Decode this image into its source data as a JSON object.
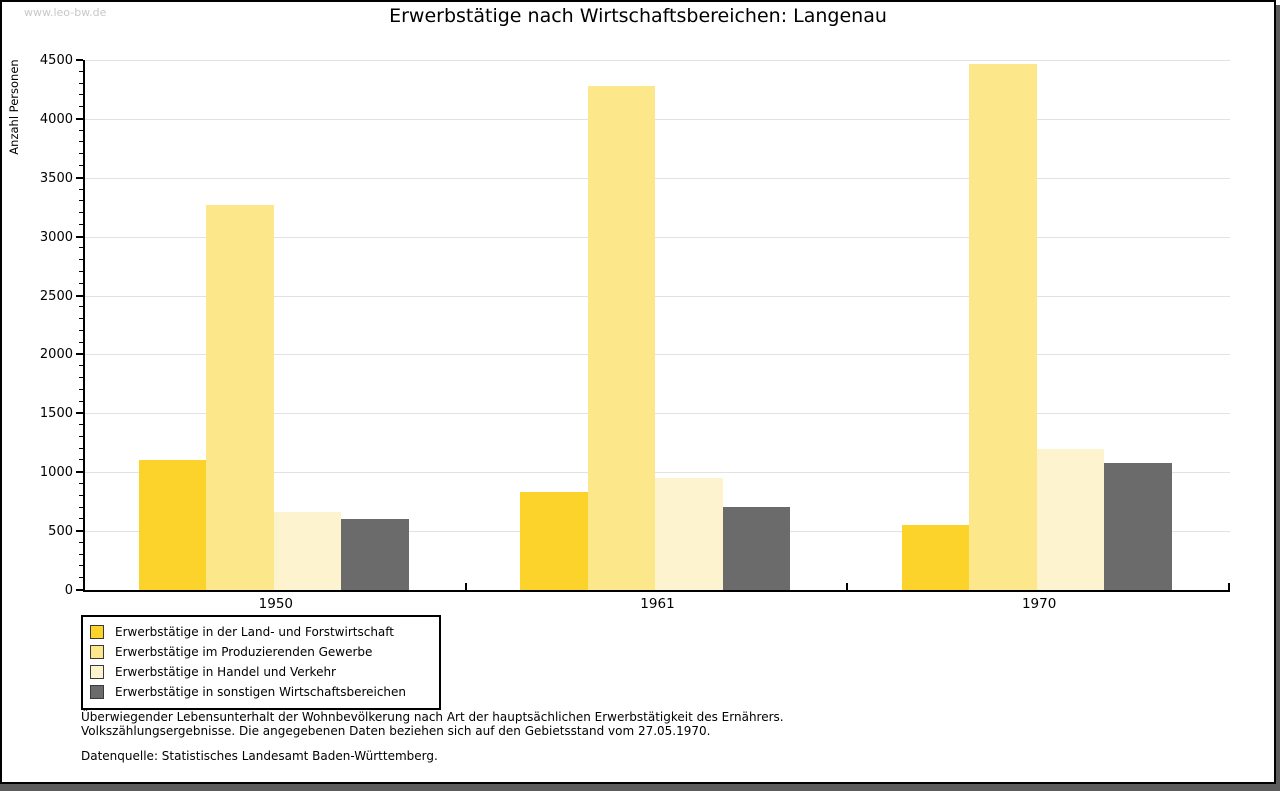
{
  "watermark": "www.leo-bw.de",
  "title": "Erwerbstätige nach Wirtschaftsbereichen: Langenau",
  "footnotes": {
    "line1": "Überwiegender Lebensunterhalt der Wohnbevölkerung nach Art der hauptsächlichen Erwerbstätigkeit des Ernährers.",
    "line2": "Volkszählungsergebnisse. Die angegebenen Daten beziehen sich auf den Gebietsstand vom 27.05.1970.",
    "source": "Datenquelle: Statistisches Landesamt Baden-Württemberg."
  },
  "colors": {
    "land_forstwirtschaft": "#fbd32b",
    "produzierendes_gewerbe": "#fce88b",
    "handel_verkehr": "#fdf4cf",
    "sonstige": "#6b6b6b",
    "gridline": "#e2e2e2",
    "axis": "#000000",
    "frame_shadow": "#5c5c5c",
    "watermark_text": "#c8c8c8"
  },
  "chart_data": {
    "type": "bar",
    "title": "Erwerbstätige nach Wirtschaftsbereichen: Langenau",
    "xlabel": "",
    "ylabel": "Anzahl Personen",
    "categories": [
      "1950",
      "1961",
      "1970"
    ],
    "series": [
      {
        "name": "Erwerbstätige in der Land- und Forstwirtschaft",
        "color": "#fbd32b",
        "values": [
          1100,
          830,
          550
        ]
      },
      {
        "name": "Erwerbstätige im Produzierenden Gewerbe",
        "color": "#fce88b",
        "values": [
          3270,
          4280,
          4470
        ]
      },
      {
        "name": "Erwerbstätige in Handel und Verkehr",
        "color": "#fdf4cf",
        "values": [
          665,
          955,
          1200
        ]
      },
      {
        "name": "Erwerbstätige in sonstigen Wirtschaftsbereichen",
        "color": "#6b6b6b",
        "values": [
          600,
          705,
          1080
        ]
      }
    ],
    "ylim": [
      0,
      4500
    ],
    "ytick_step": 500,
    "yminor_step": 100,
    "grid": true,
    "legend_position": "bottom-left"
  }
}
